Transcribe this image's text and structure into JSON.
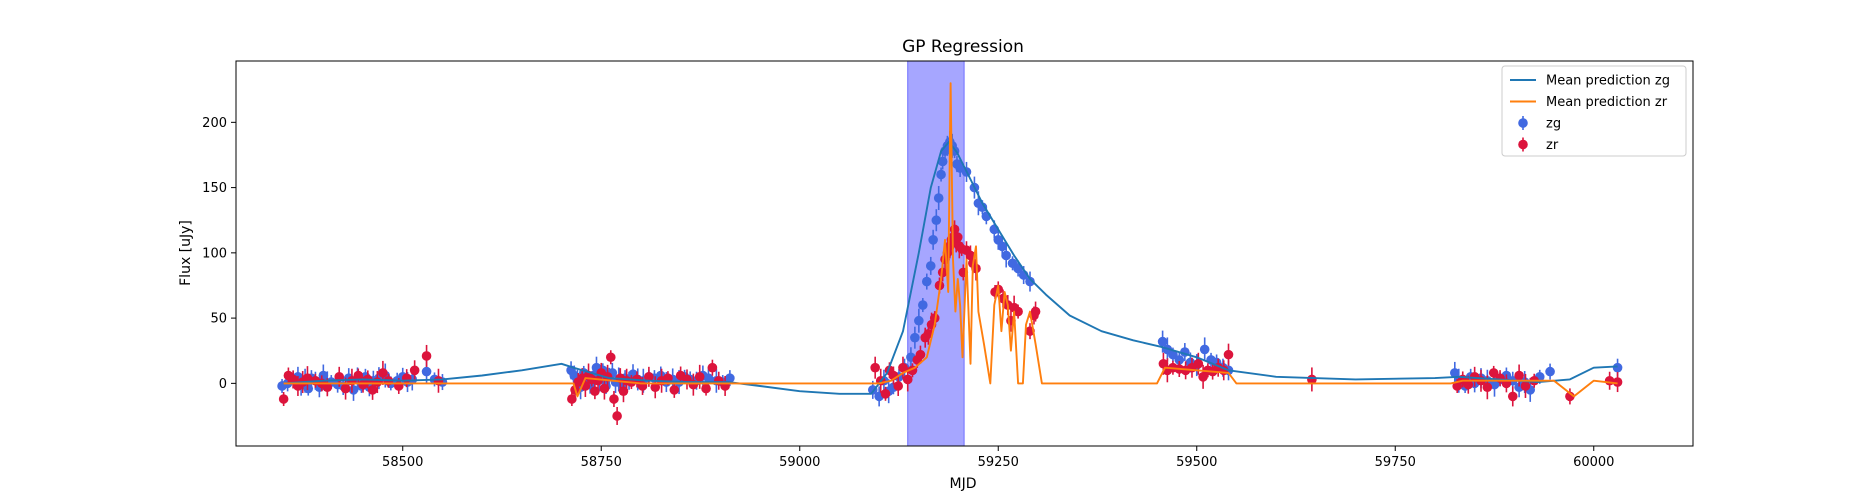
{
  "chart_data": {
    "type": "scatter",
    "title": "GP Regression",
    "xlabel": "MJD",
    "ylabel": "Flux [uJy]",
    "xlim": [
      58290,
      60125
    ],
    "ylim": [
      -48,
      247
    ],
    "x_ticks": [
      58500,
      58750,
      59000,
      59250,
      59500,
      59750,
      60000
    ],
    "y_ticks": [
      0,
      50,
      100,
      150,
      200
    ],
    "x_tick_labels": [
      "58500",
      "58750",
      "59000",
      "59250",
      "59500",
      "59750",
      "60000"
    ],
    "y_tick_labels": [
      "0",
      "50",
      "100",
      "150",
      "200"
    ],
    "legend": {
      "position": "top-right",
      "entries": [
        "Mean prediction zg",
        "Mean prediction zr",
        "zg",
        "zr"
      ]
    },
    "highlight_span": {
      "x": [
        59136,
        59207
      ],
      "color": "#8080ff"
    },
    "colors": {
      "zg_line": "#1f77b4",
      "zr_line": "#ff7f0e",
      "zg_points": "#4169e1",
      "zr_points": "#dc143c"
    },
    "lines": [
      {
        "name": "Mean prediction zg",
        "x": [
          58350,
          58400,
          58450,
          58500,
          58550,
          58600,
          58650,
          58700,
          58715,
          58760,
          58810,
          58860,
          58910,
          58950,
          59000,
          59050,
          59090,
          59110,
          59130,
          59150,
          59165,
          59178,
          59188,
          59198,
          59212,
          59230,
          59250,
          59270,
          59290,
          59310,
          59340,
          59380,
          59420,
          59455,
          59500,
          59540,
          59600,
          59700,
          59800,
          59830,
          59880,
          59930,
          59970,
          60000,
          60030
        ],
        "y": [
          0,
          2,
          3,
          2,
          3,
          6,
          10,
          15,
          12,
          4,
          2,
          1,
          1,
          -2,
          -6,
          -8,
          -8,
          8,
          40,
          100,
          150,
          178,
          185,
          177,
          160,
          138,
          118,
          98,
          80,
          68,
          52,
          40,
          33,
          28,
          20,
          10,
          5,
          3,
          4,
          5,
          3,
          1,
          3,
          12,
          13
        ]
      },
      {
        "name": "Mean prediction zr",
        "x": [
          58350,
          58715,
          58720,
          58730,
          58800,
          58912,
          59100,
          59115,
          59130,
          59145,
          59160,
          59170,
          59178,
          59183,
          59187,
          59190,
          59193,
          59196,
          59199,
          59202,
          59205,
          59210,
          59215,
          59218,
          59222,
          59225,
          59232,
          59240,
          59245,
          59250,
          59254,
          59258,
          59262,
          59266,
          59270,
          59275,
          59281,
          59285,
          59290,
          59297,
          59305,
          59320,
          59450,
          59460,
          59540,
          59550,
          59820,
          59835,
          59950,
          59975,
          60000,
          60030
        ],
        "y": [
          0,
          0,
          -10,
          4,
          0,
          0,
          0,
          2,
          8,
          12,
          20,
          45,
          80,
          110,
          70,
          230,
          95,
          55,
          80,
          60,
          20,
          95,
          15,
          90,
          105,
          55,
          30,
          0,
          60,
          75,
          40,
          70,
          60,
          25,
          55,
          0,
          0,
          45,
          55,
          30,
          0,
          0,
          0,
          12,
          8,
          0,
          0,
          2,
          2,
          -10,
          2,
          0
        ]
      }
    ],
    "series": [
      {
        "name": "zg",
        "points": [
          [
            58348,
            -2
          ],
          [
            58355,
            0
          ],
          [
            58362,
            3
          ],
          [
            58368,
            5
          ],
          [
            58372,
            -1
          ],
          [
            58377,
            2
          ],
          [
            58381,
            -4
          ],
          [
            58385,
            4
          ],
          [
            58390,
            2
          ],
          [
            58395,
            -3
          ],
          [
            58400,
            6
          ],
          [
            58405,
            0
          ],
          [
            58410,
            1
          ],
          [
            58418,
            -1
          ],
          [
            58425,
            -2
          ],
          [
            58432,
            4
          ],
          [
            58438,
            -5
          ],
          [
            58443,
            3
          ],
          [
            58448,
            -2
          ],
          [
            58453,
            5
          ],
          [
            58458,
            -3
          ],
          [
            58463,
            2
          ],
          [
            58470,
            4
          ],
          [
            58478,
            6
          ],
          [
            58485,
            0
          ],
          [
            58493,
            2
          ],
          [
            58500,
            5
          ],
          [
            58506,
            1
          ],
          [
            58512,
            3
          ],
          [
            58530,
            9
          ],
          [
            58540,
            3
          ],
          [
            58550,
            1
          ],
          [
            58712,
            10
          ],
          [
            58716,
            6
          ],
          [
            58720,
            2
          ],
          [
            58724,
            -3
          ],
          [
            58728,
            8
          ],
          [
            58732,
            4
          ],
          [
            58736,
            -1
          ],
          [
            58740,
            6
          ],
          [
            58744,
            12
          ],
          [
            58748,
            3
          ],
          [
            58752,
            10
          ],
          [
            58756,
            -2
          ],
          [
            58760,
            5
          ],
          [
            58764,
            8
          ],
          [
            58768,
            1
          ],
          [
            58772,
            3
          ],
          [
            58776,
            -1
          ],
          [
            58780,
            4
          ],
          [
            58785,
            2
          ],
          [
            58790,
            7
          ],
          [
            58796,
            3
          ],
          [
            58803,
            2
          ],
          [
            58810,
            5
          ],
          [
            58817,
            4
          ],
          [
            58825,
            6
          ],
          [
            58832,
            1
          ],
          [
            58840,
            3
          ],
          [
            58848,
            1
          ],
          [
            58855,
            5
          ],
          [
            58862,
            3
          ],
          [
            58870,
            2
          ],
          [
            58878,
            6
          ],
          [
            58885,
            4
          ],
          [
            58895,
            2
          ],
          [
            58903,
            1
          ],
          [
            58912,
            4
          ],
          [
            59092,
            -5
          ],
          [
            59100,
            -10
          ],
          [
            59106,
            2
          ],
          [
            59112,
            -6
          ],
          [
            59118,
            -3
          ],
          [
            59125,
            5
          ],
          [
            59132,
            12
          ],
          [
            59140,
            20
          ],
          [
            59145,
            35
          ],
          [
            59150,
            48
          ],
          [
            59155,
            60
          ],
          [
            59160,
            78
          ],
          [
            59165,
            90
          ],
          [
            59168,
            110
          ],
          [
            59172,
            125
          ],
          [
            59175,
            142
          ],
          [
            59178,
            160
          ],
          [
            59180,
            170
          ],
          [
            59183,
            178
          ],
          [
            59186,
            182
          ],
          [
            59189,
            185
          ],
          [
            59192,
            182
          ],
          [
            59195,
            178
          ],
          [
            59198,
            168
          ],
          [
            59202,
            165
          ],
          [
            59210,
            162
          ],
          [
            59220,
            150
          ],
          [
            59225,
            138
          ],
          [
            59230,
            135
          ],
          [
            59235,
            128
          ],
          [
            59245,
            118
          ],
          [
            59250,
            110
          ],
          [
            59255,
            105
          ],
          [
            59260,
            98
          ],
          [
            59268,
            92
          ],
          [
            59275,
            88
          ],
          [
            59282,
            83
          ],
          [
            59290,
            78
          ],
          [
            59457,
            32
          ],
          [
            59463,
            26
          ],
          [
            59470,
            22
          ],
          [
            59478,
            18
          ],
          [
            59485,
            24
          ],
          [
            59492,
            16
          ],
          [
            59500,
            14
          ],
          [
            59510,
            26
          ],
          [
            59518,
            18
          ],
          [
            59525,
            16
          ],
          [
            59533,
            12
          ],
          [
            59540,
            10
          ],
          [
            59825,
            8
          ],
          [
            59830,
            2
          ],
          [
            59838,
            -2
          ],
          [
            59845,
            5
          ],
          [
            59850,
            0
          ],
          [
            59858,
            4
          ],
          [
            59866,
            2
          ],
          [
            59875,
            -1
          ],
          [
            59882,
            3
          ],
          [
            59890,
            6
          ],
          [
            59898,
            2
          ],
          [
            59906,
            -3
          ],
          [
            59913,
            1
          ],
          [
            59920,
            -5
          ],
          [
            59932,
            5
          ],
          [
            59945,
            9
          ],
          [
            60030,
            12
          ]
        ]
      },
      {
        "name": "zr",
        "points": [
          [
            58350,
            -12
          ],
          [
            58356,
            6
          ],
          [
            58362,
            3
          ],
          [
            58368,
            -2
          ],
          [
            58374,
            1
          ],
          [
            58380,
            4
          ],
          [
            58390,
            2
          ],
          [
            58398,
            0
          ],
          [
            58405,
            -3
          ],
          [
            58420,
            5
          ],
          [
            58428,
            -4
          ],
          [
            58436,
            2
          ],
          [
            58444,
            6
          ],
          [
            58450,
            -1
          ],
          [
            58456,
            3
          ],
          [
            58462,
            -5
          ],
          [
            58468,
            1
          ],
          [
            58475,
            8
          ],
          [
            58482,
            2
          ],
          [
            58495,
            -2
          ],
          [
            58505,
            4
          ],
          [
            58515,
            10
          ],
          [
            58530,
            21
          ],
          [
            58545,
            2
          ],
          [
            58713,
            -12
          ],
          [
            58717,
            -5
          ],
          [
            58721,
            1
          ],
          [
            58726,
            4
          ],
          [
            58730,
            -2
          ],
          [
            58734,
            6
          ],
          [
            58738,
            3
          ],
          [
            58742,
            -6
          ],
          [
            58746,
            2
          ],
          [
            58750,
            8
          ],
          [
            58754,
            -4
          ],
          [
            58758,
            5
          ],
          [
            58762,
            20
          ],
          [
            58766,
            -12
          ],
          [
            58770,
            -25
          ],
          [
            58774,
            4
          ],
          [
            58778,
            -6
          ],
          [
            58782,
            2
          ],
          [
            58788,
            1
          ],
          [
            58795,
            3
          ],
          [
            58802,
            -2
          ],
          [
            58810,
            5
          ],
          [
            58818,
            -3
          ],
          [
            58826,
            2
          ],
          [
            58834,
            4
          ],
          [
            58842,
            -5
          ],
          [
            58850,
            6
          ],
          [
            58858,
            3
          ],
          [
            58866,
            -1
          ],
          [
            58874,
            5
          ],
          [
            58882,
            -4
          ],
          [
            58890,
            12
          ],
          [
            58898,
            2
          ],
          [
            58906,
            -2
          ],
          [
            59095,
            12
          ],
          [
            59102,
            2
          ],
          [
            59108,
            -8
          ],
          [
            59113,
            10
          ],
          [
            59118,
            6
          ],
          [
            59124,
            -2
          ],
          [
            59130,
            12
          ],
          [
            59136,
            3
          ],
          [
            59142,
            10
          ],
          [
            59148,
            18
          ],
          [
            59152,
            22
          ],
          [
            59158,
            35
          ],
          [
            59162,
            38
          ],
          [
            59166,
            45
          ],
          [
            59170,
            50
          ],
          [
            59176,
            75
          ],
          [
            59180,
            85
          ],
          [
            59183,
            95
          ],
          [
            59186,
            100
          ],
          [
            59189,
            105
          ],
          [
            59191,
            110
          ],
          [
            59193,
            112
          ],
          [
            59195,
            118
          ],
          [
            59197,
            108
          ],
          [
            59199,
            112
          ],
          [
            59201,
            105
          ],
          [
            59204,
            103
          ],
          [
            59206,
            85
          ],
          [
            59210,
            102
          ],
          [
            59215,
            98
          ],
          [
            59218,
            92
          ],
          [
            59222,
            88
          ],
          [
            59246,
            70
          ],
          [
            59250,
            72
          ],
          [
            59256,
            65
          ],
          [
            59262,
            60
          ],
          [
            59266,
            48
          ],
          [
            59270,
            58
          ],
          [
            59275,
            55
          ],
          [
            59290,
            40
          ],
          [
            59295,
            52
          ],
          [
            59297,
            55
          ],
          [
            59458,
            15
          ],
          [
            59463,
            10
          ],
          [
            59470,
            12
          ],
          [
            59478,
            11
          ],
          [
            59486,
            10
          ],
          [
            59494,
            12
          ],
          [
            59502,
            15
          ],
          [
            59508,
            5
          ],
          [
            59514,
            10
          ],
          [
            59520,
            9
          ],
          [
            59527,
            12
          ],
          [
            59534,
            10
          ],
          [
            59540,
            22
          ],
          [
            59645,
            3
          ],
          [
            59828,
            -2
          ],
          [
            59835,
            3
          ],
          [
            59842,
            -1
          ],
          [
            59850,
            5
          ],
          [
            59858,
            2
          ],
          [
            59866,
            -3
          ],
          [
            59874,
            8
          ],
          [
            59882,
            4
          ],
          [
            59890,
            0
          ],
          [
            59898,
            -10
          ],
          [
            59906,
            6
          ],
          [
            59914,
            -2
          ],
          [
            59925,
            2
          ],
          [
            59970,
            -10
          ],
          [
            60020,
            2
          ],
          [
            60030,
            1
          ]
        ]
      }
    ]
  }
}
